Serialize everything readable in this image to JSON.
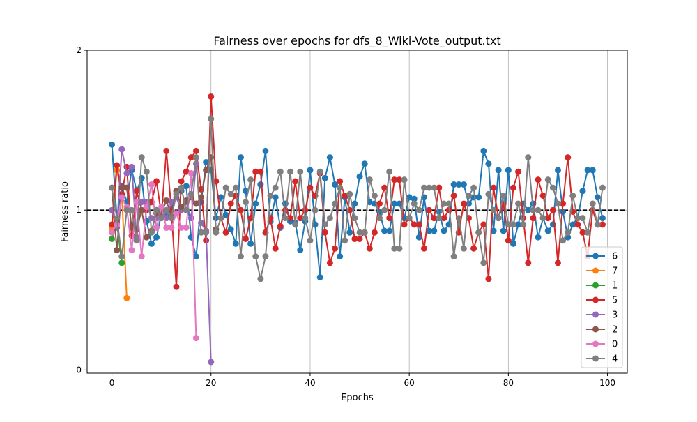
{
  "chart_data": {
    "type": "line",
    "title": "Fairness over epochs for dfs_8_Wiki-Vote_output.txt",
    "xlabel": "Epochs",
    "ylabel": "Fairness ratio",
    "xlim": [
      -5,
      104
    ],
    "ylim": [
      -0.02,
      2.0
    ],
    "xticks": [
      0,
      20,
      40,
      60,
      80,
      100
    ],
    "yticks": [
      0,
      1,
      2
    ],
    "grid": true,
    "legend_position": "lower-right",
    "reference_line": {
      "y": 1.0,
      "style": "dashed",
      "color": "#000000"
    },
    "series": [
      {
        "name": "6",
        "color": "#1f77b4",
        "values": [
          1.41,
          0.95,
          1.15,
          1.05,
          1.25,
          1.12,
          1.2,
          0.93,
          0.79,
          0.83,
          0.98,
          0.96,
          1.0,
          1.12,
          1.12,
          1.15,
          0.83,
          0.71,
          1.05,
          1.3,
          1.25,
          0.95,
          1.08,
          0.97,
          0.88,
          0.79,
          1.33,
          1.12,
          0.79,
          1.04,
          1.16,
          1.37,
          0.93,
          1.08,
          0.89,
          1.04,
          0.93,
          0.92,
          0.75,
          0.93,
          1.25,
          0.91,
          0.58,
          1.2,
          1.33,
          1.16,
          0.71,
          1.08,
          0.86,
          1.04,
          1.21,
          1.29,
          1.05,
          1.04,
          0.99,
          0.87,
          0.87,
          1.04,
          1.04,
          0.95,
          1.08,
          1.07,
          0.83,
          1.08,
          0.87,
          0.87,
          0.99,
          0.87,
          0.91,
          1.16,
          1.16,
          1.16,
          1.04,
          1.08,
          1.08,
          1.37,
          1.29,
          0.87,
          1.25,
          0.87,
          1.25,
          0.79,
          0.91,
          1.04,
          1.0,
          1.04,
          0.83,
          0.95,
          0.87,
          0.91,
          1.25,
          0.99,
          0.83,
          0.91,
          0.95,
          1.12,
          1.25,
          1.25,
          1.08,
          0.95
        ]
      },
      {
        "name": "7",
        "color": "#ff7f0e",
        "values": [
          0.88,
          1.25,
          1.1,
          0.45
        ]
      },
      {
        "name": "1",
        "color": "#2ca02c",
        "values": [
          0.82,
          0.92,
          0.67
        ]
      },
      {
        "name": "5",
        "color": "#d62728",
        "values": [
          0.91,
          1.28,
          1.1,
          1.27,
          0.84,
          1.12,
          1.0,
          1.0,
          1.05,
          1.18,
          0.97,
          1.37,
          1.0,
          0.52,
          1.18,
          1.24,
          1.33,
          1.37,
          1.13,
          0.81,
          1.71,
          1.18,
          0.95,
          0.86,
          1.04,
          1.09,
          1.0,
          0.82,
          0.95,
          1.24,
          1.24,
          0.86,
          0.95,
          0.76,
          0.9,
          1.0,
          0.95,
          1.18,
          0.95,
          1.0,
          1.14,
          1.09,
          1.23,
          0.86,
          0.67,
          0.76,
          1.18,
          1.09,
          1.0,
          0.82,
          0.82,
          0.86,
          0.76,
          0.86,
          1.04,
          1.14,
          0.95,
          1.19,
          1.19,
          0.91,
          0.95,
          0.91,
          0.91,
          0.76,
          1.0,
          0.95,
          1.14,
          0.95,
          1.0,
          1.09,
          0.86,
          1.04,
          0.95,
          0.76,
          0.86,
          0.91,
          0.57,
          1.14,
          0.95,
          1.04,
          0.81,
          1.14,
          1.24,
          0.95,
          0.67,
          0.95,
          1.19,
          1.09,
          0.95,
          1.0,
          0.67,
          1.04,
          1.33,
          0.99,
          0.91,
          0.86,
          0.71,
          1.0,
          0.91,
          0.91
        ]
      },
      {
        "name": "3",
        "color": "#9467bd",
        "values": [
          1.0,
          0.89,
          1.38,
          1.23,
          1.27,
          0.83,
          1.05,
          1.05,
          0.95,
          0.95,
          1.0,
          0.95,
          1.05,
          1.08,
          1.0,
          1.05,
          0.95,
          1.29,
          0.92,
          0.87,
          0.05
        ]
      },
      {
        "name": "2",
        "color": "#8c564b",
        "values": [
          1.14,
          0.75,
          1.14,
          1.14,
          0.89,
          0.88,
          1.0,
          0.83,
          0.87,
          0.98,
          0.98,
          1.06,
          0.96,
          1.12,
          1.02,
          1.06,
          1.08,
          1.04,
          1.08,
          1.25,
          1.33,
          0.88
        ]
      },
      {
        "name": "0",
        "color": "#e377c2",
        "values": [
          0.86,
          0.91,
          1.08,
          1.02,
          0.75,
          1.05,
          0.71,
          1.02,
          1.16,
          0.89,
          1.02,
          0.89,
          0.89,
          0.98,
          0.89,
          0.89,
          1.23,
          0.2
        ]
      },
      {
        "name": "4",
        "color": "#7f7f7f",
        "values": [
          1.14,
          0.95,
          0.71,
          1.0,
          1.0,
          0.81,
          1.33,
          1.24,
          0.86,
          1.0,
          0.95,
          1.0,
          0.95,
          1.1,
          1.14,
          1.0,
          1.1,
          1.33,
          0.86,
          0.86,
          1.57,
          0.86,
          0.95,
          1.14,
          1.1,
          1.14,
          0.71,
          1.05,
          1.19,
          0.71,
          0.57,
          0.71,
          1.09,
          1.14,
          1.24,
          0.95,
          1.24,
          0.91,
          1.24,
          0.95,
          0.81,
          1.0,
          1.24,
          0.91,
          0.95,
          1.04,
          1.14,
          0.81,
          1.1,
          0.95,
          0.86,
          0.86,
          1.19,
          1.09,
          0.95,
          1.0,
          1.24,
          0.76,
          0.76,
          1.19,
          0.95,
          1.04,
          1.0,
          1.14,
          1.14,
          1.14,
          0.95,
          1.04,
          1.04,
          0.71,
          0.95,
          0.76,
          1.09,
          1.14,
          0.86,
          0.67,
          1.1,
          1.0,
          0.95,
          1.09,
          0.91,
          0.91,
          1.04,
          0.91,
          1.33,
          1.0,
          1.0,
          0.95,
          1.19,
          1.14,
          1.04,
          0.81,
          0.86,
          1.09,
          0.95,
          0.95,
          0.86,
          1.04,
          0.91,
          1.14
        ]
      }
    ]
  }
}
